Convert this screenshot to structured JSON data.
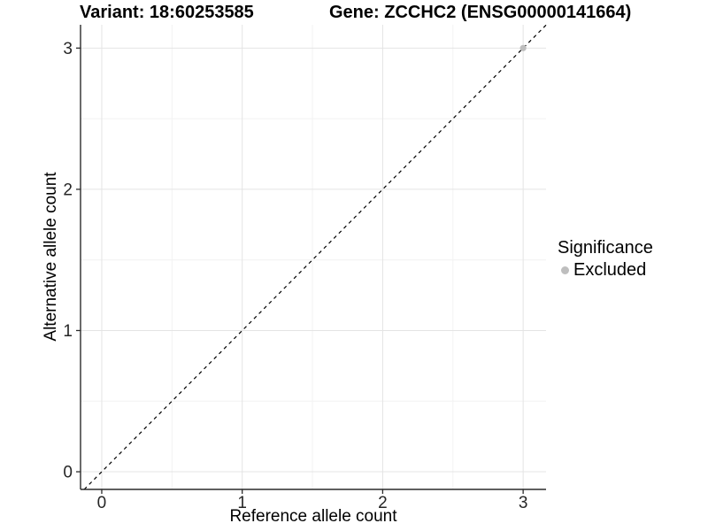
{
  "titles": {
    "variant": "Variant: 18:60253585",
    "gene": "Gene: ZCCHC2 (ENSG00000141664)"
  },
  "chart_data": {
    "type": "scatter",
    "xlabel": "Reference allele count",
    "ylabel": "Alternative allele count",
    "xlim": [
      -0.151,
      3.163
    ],
    "ylim": [
      -0.125,
      3.165
    ],
    "xticks": [
      0,
      1,
      2,
      3
    ],
    "yticks": [
      0,
      1,
      2,
      3
    ],
    "xminor": [
      0.5,
      1.5,
      2.5
    ],
    "yminor": [
      0.5,
      1.5,
      2.5
    ],
    "grid": "on",
    "identity_line": {
      "style": "dashed",
      "slope": 1,
      "intercept": 0,
      "color": "#000000"
    },
    "series": [
      {
        "name": "Excluded",
        "color": "#bebebe",
        "points": [
          {
            "x": 3,
            "y": 3
          }
        ]
      }
    ],
    "legend": {
      "title": "Significance",
      "position": "right",
      "items": [
        {
          "label": "Excluded",
          "color": "#bebebe"
        }
      ]
    },
    "colors": {
      "grid_major": "#e4e4e4",
      "grid_minor": "#f2f2f2",
      "axis_line": "#2b2b2b",
      "tick_text": "#262626",
      "point": "#bebebe"
    }
  }
}
